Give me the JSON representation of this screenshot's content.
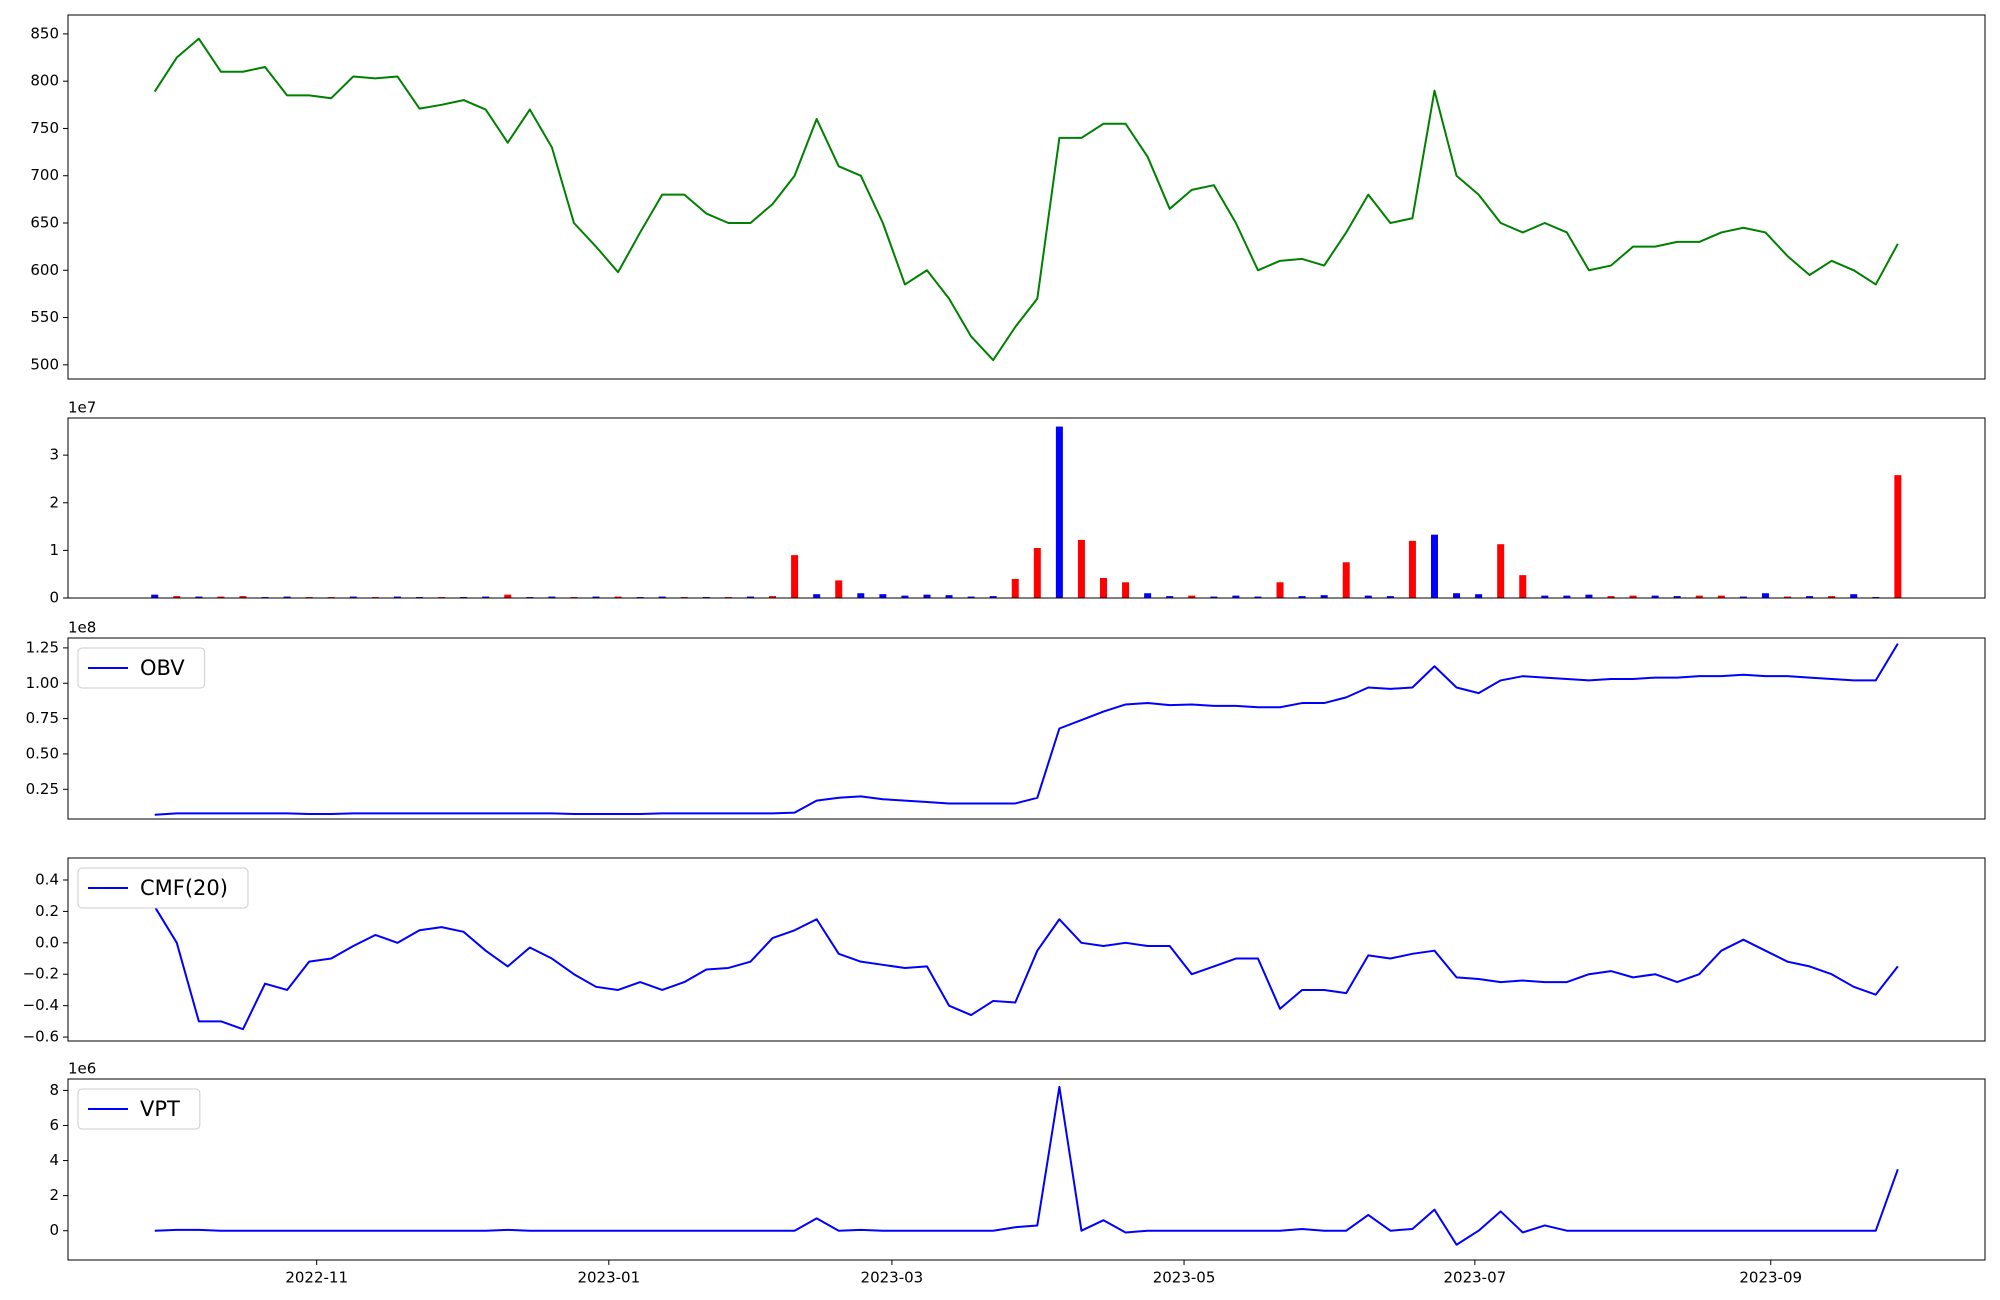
{
  "chart_data": [
    {
      "type": "line",
      "color": "#008000",
      "ylim": [
        485,
        870
      ],
      "yticks": [
        500,
        550,
        600,
        650,
        700,
        750,
        800,
        850
      ],
      "xlim": [
        -3.93,
        82.95
      ],
      "values": [
        789,
        825,
        845,
        810,
        810,
        815,
        785,
        785,
        782,
        805,
        803,
        805,
        771,
        775,
        780,
        770,
        735,
        770,
        730,
        650,
        625,
        598,
        640,
        680,
        680,
        660,
        650,
        650,
        670,
        700,
        760,
        710,
        700,
        650,
        585,
        600,
        570,
        530,
        505,
        540,
        570,
        740,
        740,
        755,
        755,
        720,
        665,
        685,
        690,
        650,
        600,
        610,
        612,
        605,
        640,
        680,
        650,
        655,
        790,
        700,
        680,
        650,
        640,
        650,
        640,
        600,
        605,
        625,
        625,
        630,
        630,
        640,
        645,
        640,
        615,
        595,
        610,
        600,
        585,
        628
      ]
    },
    {
      "type": "bar",
      "offset_label": "1e7",
      "ylim": [
        0,
        3.78
      ],
      "yticks": [
        0,
        1,
        2,
        3
      ],
      "xlim": [
        -3.93,
        82.95
      ],
      "values": [
        0.07,
        0.04,
        0.03,
        0.03,
        0.04,
        0.02,
        0.03,
        0.02,
        0.02,
        0.03,
        0.02,
        0.03,
        0.02,
        0.02,
        0.02,
        0.03,
        0.07,
        0.02,
        0.03,
        0.02,
        0.03,
        0.03,
        0.02,
        0.03,
        0.02,
        0.02,
        0.02,
        0.03,
        0.04,
        0.9,
        0.08,
        0.37,
        0.1,
        0.08,
        0.05,
        0.07,
        0.06,
        0.03,
        0.04,
        0.4,
        1.05,
        3.6,
        1.22,
        0.42,
        0.33,
        0.1,
        0.04,
        0.05,
        0.03,
        0.05,
        0.03,
        0.33,
        0.04,
        0.06,
        0.75,
        0.05,
        0.04,
        1.2,
        1.33,
        0.1,
        0.08,
        1.13,
        0.48,
        0.05,
        0.05,
        0.07,
        0.04,
        0.05,
        0.05,
        0.04,
        0.05,
        0.05,
        0.03,
        0.1,
        0.03,
        0.04,
        0.04,
        0.08,
        0.02,
        2.58
      ],
      "bar_colors": [
        "#0000ff",
        "#ff0000",
        "#0000ff",
        "#ff0000",
        "#ff0000",
        "#0000ff",
        "#0000ff",
        "#ff0000",
        "#ff0000",
        "#0000ff",
        "#ff0000",
        "#0000ff",
        "#0000ff",
        "#ff0000",
        "#0000ff",
        "#0000ff",
        "#ff0000",
        "#0000ff",
        "#0000ff",
        "#ff0000",
        "#0000ff",
        "#ff0000",
        "#0000ff",
        "#0000ff",
        "#ff0000",
        "#0000ff",
        "#ff0000",
        "#0000ff",
        "#ff0000",
        "#ff0000",
        "#0000ff",
        "#ff0000",
        "#0000ff",
        "#0000ff",
        "#0000ff",
        "#0000ff",
        "#0000ff",
        "#0000ff",
        "#0000ff",
        "#ff0000",
        "#ff0000",
        "#0000ff",
        "#ff0000",
        "#ff0000",
        "#ff0000",
        "#0000ff",
        "#0000ff",
        "#ff0000",
        "#0000ff",
        "#0000ff",
        "#0000ff",
        "#ff0000",
        "#0000ff",
        "#0000ff",
        "#ff0000",
        "#0000ff",
        "#0000ff",
        "#ff0000",
        "#0000ff",
        "#0000ff",
        "#0000ff",
        "#ff0000",
        "#ff0000",
        "#0000ff",
        "#0000ff",
        "#0000ff",
        "#ff0000",
        "#ff0000",
        "#0000ff",
        "#0000ff",
        "#ff0000",
        "#ff0000",
        "#0000ff",
        "#0000ff",
        "#ff0000",
        "#0000ff",
        "#ff0000",
        "#0000ff",
        "#0000ff",
        "#ff0000"
      ]
    },
    {
      "type": "line",
      "offset_label": "1e8",
      "legend": "upper left",
      "ylim": [
        0.04,
        1.32
      ],
      "xlim": [
        -3.93,
        82.95
      ],
      "yticks": [
        0.25,
        {
          "value": 0.5,
          "label": "0.50"
        },
        0.75,
        {
          "value": 1.0,
          "label": "1.00"
        },
        1.25
      ],
      "series": [
        {
          "name": "OBV",
          "color": "#0000ff",
          "values": [
            0.07,
            0.08,
            0.08,
            0.08,
            0.08,
            0.08,
            0.08,
            0.075,
            0.075,
            0.08,
            0.08,
            0.08,
            0.08,
            0.08,
            0.08,
            0.08,
            0.08,
            0.08,
            0.08,
            0.075,
            0.075,
            0.075,
            0.075,
            0.08,
            0.08,
            0.08,
            0.08,
            0.08,
            0.08,
            0.085,
            0.17,
            0.19,
            0.2,
            0.18,
            0.17,
            0.16,
            0.15,
            0.15,
            0.15,
            0.15,
            0.19,
            0.68,
            0.74,
            0.8,
            0.85,
            0.86,
            0.845,
            0.85,
            0.84,
            0.84,
            0.83,
            0.83,
            0.86,
            0.86,
            0.9,
            0.97,
            0.96,
            0.97,
            1.12,
            0.97,
            0.93,
            1.02,
            1.05,
            1.04,
            1.03,
            1.02,
            1.03,
            1.03,
            1.04,
            1.04,
            1.05,
            1.05,
            1.06,
            1.05,
            1.05,
            1.04,
            1.03,
            1.02,
            1.02,
            1.28
          ]
        }
      ]
    },
    {
      "type": "line",
      "legend": "upper left",
      "ylim": [
        -0.625,
        0.54
      ],
      "xlim": [
        -3.93,
        82.95
      ],
      "yticks": [
        {
          "value": -0.6,
          "label": "−0.6"
        },
        {
          "value": -0.4,
          "label": "−0.4"
        },
        {
          "value": -0.2,
          "label": "−0.2"
        },
        {
          "value": 0,
          "label": "0.0"
        },
        0.2,
        0.4
      ],
      "series": [
        {
          "name": "CMF(20)",
          "color": "#0000ff",
          "values": [
            0.23,
            0.0,
            -0.5,
            -0.5,
            -0.55,
            -0.26,
            -0.3,
            -0.12,
            -0.1,
            -0.02,
            0.05,
            0.0,
            0.08,
            0.1,
            0.07,
            -0.05,
            -0.15,
            -0.03,
            -0.1,
            -0.2,
            -0.28,
            -0.3,
            -0.25,
            -0.3,
            -0.25,
            -0.17,
            -0.16,
            -0.12,
            0.03,
            0.08,
            0.15,
            -0.07,
            -0.12,
            -0.14,
            -0.16,
            -0.15,
            -0.4,
            -0.46,
            -0.37,
            -0.38,
            -0.05,
            0.15,
            0.0,
            -0.02,
            0.0,
            -0.02,
            -0.02,
            -0.2,
            -0.15,
            -0.1,
            -0.1,
            -0.42,
            -0.3,
            -0.3,
            -0.32,
            -0.08,
            -0.1,
            -0.07,
            -0.05,
            -0.22,
            -0.23,
            -0.25,
            -0.24,
            -0.25,
            -0.25,
            -0.2,
            -0.18,
            -0.22,
            -0.2,
            -0.25,
            -0.2,
            -0.05,
            0.02,
            -0.05,
            -0.12,
            -0.15,
            -0.2,
            -0.28,
            -0.33,
            -0.15
          ]
        }
      ]
    },
    {
      "type": "line",
      "offset_label": "1e6",
      "legend": "upper left",
      "ylim": [
        -1.67,
        8.65
      ],
      "yticks": [
        0,
        2,
        4,
        6,
        8
      ],
      "xlim": [
        -3.93,
        82.95
      ],
      "xticks": [
        {
          "value": 7.34,
          "label": "2022-11"
        },
        {
          "value": 20.58,
          "label": "2023-01"
        },
        {
          "value": 33.41,
          "label": "2023-03"
        },
        {
          "value": 46.65,
          "label": "2023-05"
        },
        {
          "value": 59.83,
          "label": "2023-07"
        },
        {
          "value": 73.24,
          "label": "2023-09"
        }
      ],
      "series": [
        {
          "name": "VPT",
          "color": "#0000ff",
          "values": [
            0,
            0.05,
            0.05,
            0,
            0,
            0,
            0,
            0,
            0,
            0,
            0,
            0,
            0,
            0,
            0,
            0,
            0.05,
            0,
            0,
            0,
            0,
            0,
            0,
            0,
            0,
            0,
            0,
            0,
            0,
            0,
            0.7,
            0.0,
            0.05,
            0,
            0,
            0,
            0,
            0,
            0,
            0.2,
            0.3,
            8.2,
            0.0,
            0.6,
            -0.1,
            0.0,
            0,
            0,
            0,
            0,
            0,
            0,
            0.1,
            0,
            0,
            0.9,
            0.0,
            0.1,
            1.2,
            -0.8,
            0.0,
            1.1,
            -0.1,
            0.3,
            0,
            0,
            0,
            0,
            0,
            0,
            0,
            0,
            0,
            0,
            0,
            0,
            0,
            0,
            0,
            3.5
          ]
        }
      ]
    }
  ]
}
